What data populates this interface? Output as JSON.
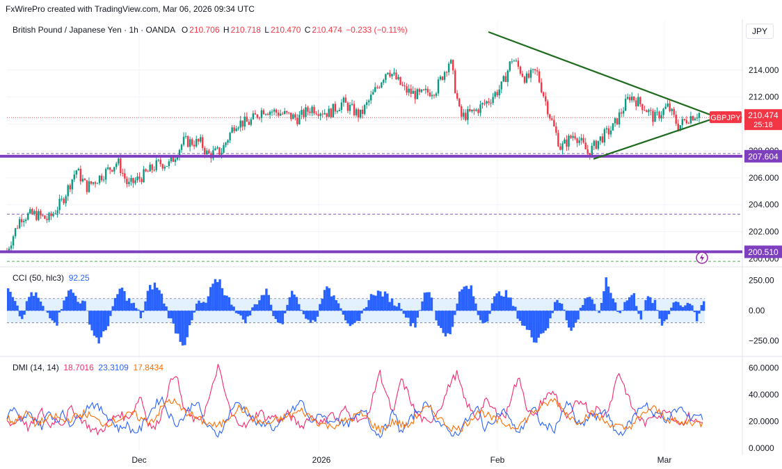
{
  "header": {
    "credit": "FxWirePro created with TradingView.com, Mar 06, 2026 09:34 UTC"
  },
  "symbol": {
    "name": "British Pound / Japanese Yen · 1h · OANDA",
    "o_label": "O",
    "o": "210.706",
    "h_label": "H",
    "h": "210.718",
    "l_label": "L",
    "l": "210.470",
    "c_label": "C",
    "c": "210.474",
    "change": "−0.233 (−0.11%)"
  },
  "currency": "JPY",
  "price_tag": {
    "ticker": "GBPJPY",
    "price": "210.474",
    "countdown": "25:18"
  },
  "levels": {
    "upper": "207.604",
    "lower": "200.510"
  },
  "cci": {
    "label": "CCI (50, hlc3)",
    "value": "92.25",
    "ticks": [
      "250.00",
      "0.00",
      "−250.00"
    ]
  },
  "dmi": {
    "label": "DMI (14, 14)",
    "v1": "18.7016",
    "v2": "23.3109",
    "v3": "17.8434",
    "ticks": [
      "60.0000",
      "40.0000",
      "20.0000",
      "0.0000"
    ]
  },
  "x_labels": [
    "Dec",
    "2026",
    "Feb",
    "Mar"
  ],
  "colors": {
    "up": "#089981",
    "down": "#f23645",
    "level": "#7e3fbf",
    "trend": "#1e6b1e",
    "cci": "#2962ff",
    "dmi_plus": "#f7296d",
    "dmi_minus": "#2962ff",
    "adx": "#ff6d00"
  },
  "chart_data": [
    {
      "type": "candlestick",
      "title": "British Pound / Japanese Yen · 1h · OANDA",
      "ylabel": "JPY",
      "ylim": [
        199.5,
        216.0
      ],
      "y_ticks": [
        200,
        202,
        204,
        206,
        208,
        210,
        212,
        214
      ],
      "x_ticks": [
        "Dec",
        "2026",
        "Feb",
        "Mar"
      ],
      "close_path": [
        [
          0,
          200.6
        ],
        [
          4,
          203.1
        ],
        [
          8,
          203.3
        ],
        [
          12,
          202.9
        ],
        [
          16,
          204.3
        ],
        [
          20,
          206.6
        ],
        [
          23,
          205.3
        ],
        [
          27,
          206.1
        ],
        [
          32,
          207.2
        ],
        [
          35,
          205.4
        ],
        [
          39,
          206.1
        ],
        [
          44,
          207.1
        ],
        [
          47,
          207.0
        ],
        [
          51,
          208.7
        ],
        [
          56,
          208.6
        ],
        [
          58,
          207.7
        ],
        [
          62,
          208.0
        ],
        [
          66,
          210.1
        ],
        [
          70,
          210.1
        ],
        [
          74,
          211.1
        ],
        [
          79,
          210.8
        ],
        [
          84,
          210.4
        ],
        [
          88,
          211.2
        ],
        [
          93,
          210.8
        ],
        [
          97,
          211.6
        ],
        [
          102,
          210.6
        ],
        [
          106,
          212.3
        ],
        [
          110,
          214.1
        ],
        [
          115,
          212.5
        ],
        [
          119,
          212.1
        ],
        [
          124,
          212.6
        ],
        [
          128,
          214.8
        ],
        [
          131,
          210.5
        ],
        [
          135,
          210.9
        ],
        [
          139,
          211.7
        ],
        [
          143,
          212.8
        ],
        [
          146,
          214.9
        ],
        [
          150,
          213.3
        ],
        [
          153,
          213.9
        ],
        [
          157,
          210.5
        ],
        [
          160,
          208.2
        ],
        [
          164,
          209.3
        ],
        [
          168,
          207.8
        ],
        [
          171,
          208.8
        ],
        [
          175,
          209.7
        ],
        [
          180,
          212.1
        ],
        [
          184,
          211.3
        ],
        [
          187,
          210.4
        ],
        [
          191,
          211.3
        ],
        [
          194,
          209.8
        ],
        [
          197,
          210.5
        ],
        [
          200,
          210.8
        ]
      ],
      "resistance_line": [
        [
          209.3,
          215.0
        ],
        [
          210.6,
          210.7
        ]
      ],
      "support_line": [
        [
          207.3,
          207.4
        ],
        [
          210.6,
          210.3
        ]
      ],
      "horizontal_levels": [
        207.604,
        200.51
      ],
      "dashed_levels": [
        207.8,
        203.3,
        199.8
      ],
      "last_price": 210.474
    },
    {
      "type": "bar",
      "title": "CCI (50, hlc3)",
      "last": 92.25,
      "ylim": [
        -350,
        300
      ],
      "y_ticks": [
        250,
        0,
        -250
      ],
      "band": [
        -100,
        100
      ],
      "values": [
        180,
        60,
        -80,
        120,
        140,
        20,
        -40,
        -100,
        120,
        170,
        90,
        50,
        -180,
        -260,
        -150,
        40,
        200,
        100,
        40,
        -60,
        180,
        220,
        110,
        -60,
        -180,
        -290,
        -120,
        80,
        40,
        200,
        270,
        120,
        60,
        -60,
        -80,
        40,
        120,
        170,
        -90,
        -100,
        140,
        130,
        -20,
        -110,
        -50,
        200,
        140,
        90,
        -60,
        -140,
        -100,
        60,
        150,
        150,
        120,
        60,
        40,
        -90,
        -120,
        110,
        160,
        -90,
        -180,
        -210,
        120,
        200,
        180,
        -60,
        -100,
        90,
        150,
        140,
        30,
        -100,
        -170,
        -250,
        -180,
        -120,
        100,
        60,
        -190,
        -80,
        110,
        120,
        -70,
        260,
        120,
        -20,
        90,
        140,
        -60,
        110,
        70,
        -120,
        -20,
        100,
        40,
        70,
        -90,
        90
      ]
    },
    {
      "type": "line",
      "title": "DMI (14, 14)",
      "ylim": [
        0,
        65
      ],
      "y_ticks": [
        0,
        20,
        40,
        60
      ],
      "series": [
        {
          "name": "",
          "last": 18.7016,
          "values": [
            20,
            18,
            24,
            15,
            20,
            28,
            16,
            22,
            18,
            30,
            24,
            20,
            14,
            12,
            16,
            22,
            26,
            22,
            28,
            40,
            20,
            14,
            26,
            45,
            58,
            32,
            24,
            20,
            26,
            40,
            62,
            42,
            24,
            20,
            16,
            22,
            28,
            22,
            24,
            20,
            26,
            20,
            16,
            24,
            22,
            18,
            28,
            20,
            30,
            24,
            22,
            20,
            36,
            58,
            40,
            24,
            52,
            42,
            28,
            22,
            18,
            26,
            34,
            48,
            56,
            38,
            28,
            22,
            36,
            30,
            26,
            24,
            44,
            52,
            30,
            22,
            34,
            40,
            42,
            26,
            22,
            34,
            36,
            26,
            30,
            24,
            36,
            58,
            44,
            30,
            22,
            18,
            26,
            24,
            30,
            22,
            18,
            24,
            20,
            19
          ]
        },
        {
          "name": "",
          "last": 23.3109,
          "values": [
            24,
            30,
            18,
            26,
            22,
            16,
            28,
            20,
            26,
            18,
            22,
            28,
            34,
            30,
            26,
            20,
            14,
            18,
            12,
            14,
            24,
            32,
            38,
            26,
            18,
            22,
            30,
            36,
            20,
            14,
            10,
            18,
            30,
            34,
            28,
            22,
            16,
            20,
            14,
            18,
            26,
            30,
            36,
            20,
            22,
            26,
            18,
            24,
            16,
            20,
            24,
            30,
            14,
            10,
            16,
            28,
            12,
            18,
            26,
            30,
            34,
            22,
            16,
            12,
            10,
            18,
            24,
            30,
            14,
            20,
            26,
            28,
            16,
            12,
            22,
            30,
            18,
            16,
            14,
            28,
            34,
            20,
            16,
            26,
            22,
            30,
            18,
            10,
            14,
            22,
            30,
            34,
            24,
            26,
            20,
            28,
            30,
            22,
            26,
            23
          ]
        },
        {
          "name": "",
          "last": 17.8434,
          "values": [
            22,
            20,
            24,
            26,
            18,
            20,
            22,
            24,
            20,
            22,
            24,
            26,
            24,
            20,
            18,
            20,
            22,
            24,
            26,
            22,
            20,
            22,
            30,
            36,
            34,
            28,
            26,
            22,
            20,
            18,
            16,
            20,
            26,
            30,
            28,
            22,
            20,
            18,
            20,
            22,
            24,
            26,
            28,
            24,
            20,
            18,
            16,
            18,
            20,
            22,
            26,
            24,
            18,
            14,
            16,
            20,
            18,
            16,
            22,
            28,
            30,
            26,
            20,
            16,
            14,
            16,
            22,
            28,
            26,
            22,
            20,
            18,
            16,
            18,
            22,
            28,
            30,
            34,
            36,
            30,
            24,
            20,
            22,
            26,
            24,
            20,
            18,
            16,
            14,
            18,
            22,
            28,
            30,
            26,
            22,
            20,
            18,
            20,
            19,
            18
          ]
        }
      ]
    }
  ]
}
